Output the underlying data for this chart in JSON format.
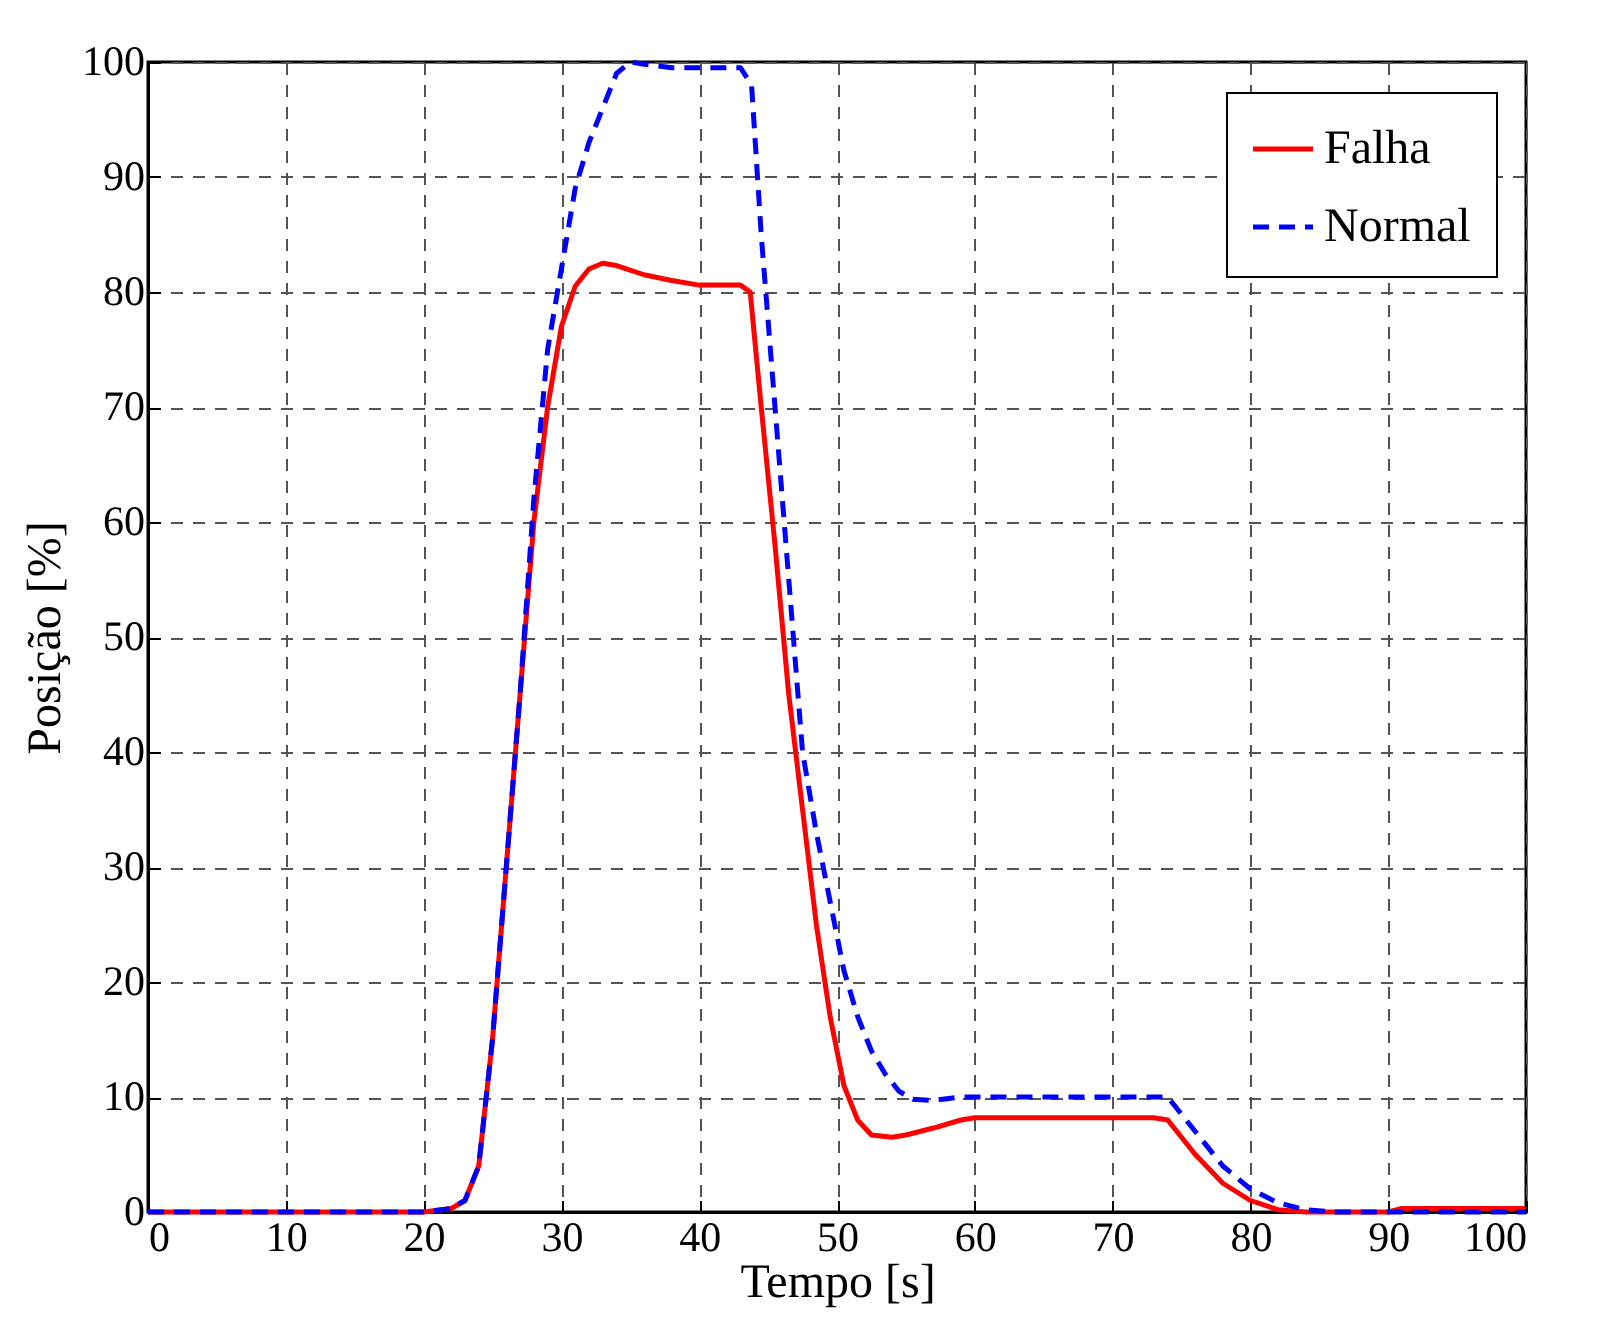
{
  "chart_data": {
    "type": "line",
    "xlabel": "Tempo [s]",
    "ylabel": "Posição [%]",
    "xlim": [
      0,
      100
    ],
    "ylim": [
      0,
      100
    ],
    "xticks": [
      0,
      10,
      20,
      30,
      40,
      50,
      60,
      70,
      80,
      90,
      100
    ],
    "yticks": [
      0,
      10,
      20,
      30,
      40,
      50,
      60,
      70,
      80,
      90,
      100
    ],
    "grid": true,
    "legend": "top right",
    "marker": "none",
    "series": [
      {
        "name": "Falha",
        "color": "#ff0000",
        "line_style": "solid",
        "x": [
          0,
          20,
          22,
          23,
          24,
          25,
          26,
          27,
          28,
          29,
          30,
          31,
          32,
          33,
          34,
          36,
          38,
          40,
          43,
          43.7,
          44.5,
          45.5,
          46.5,
          47.5,
          48.5,
          49.5,
          50.5,
          51.5,
          52.5,
          54,
          55,
          57,
          59,
          60,
          73,
          74,
          76,
          78,
          80,
          82,
          84,
          90,
          91,
          100
        ],
        "values": [
          0,
          0,
          0.3,
          1,
          4,
          15,
          30,
          45,
          60,
          70,
          77,
          80.5,
          82,
          82.5,
          82.3,
          81.5,
          81,
          80.6,
          80.6,
          80,
          70,
          58,
          45,
          35,
          25,
          17,
          11,
          8,
          6.7,
          6.5,
          6.7,
          7.3,
          8,
          8.2,
          8.2,
          8,
          5,
          2.5,
          1,
          0.2,
          0,
          0,
          0.3,
          0.3
        ]
      },
      {
        "name": "Normal",
        "color": "#0000ff",
        "line_style": "dashed",
        "x": [
          0,
          20,
          22,
          23,
          24,
          25,
          26,
          27,
          28,
          29,
          30,
          31,
          32,
          33,
          34,
          35,
          36,
          38,
          43,
          43.8,
          44.5,
          45.5,
          46.5,
          47.5,
          48.5,
          49.5,
          50.5,
          51.5,
          52.5,
          53.5,
          54.5,
          55.5,
          57,
          59,
          74,
          76,
          78,
          80,
          82,
          84,
          86,
          100
        ],
        "values": [
          0,
          0,
          0.3,
          1,
          4,
          15,
          30,
          45,
          62,
          75,
          82,
          89,
          93,
          96,
          99,
          100,
          99.8,
          99.5,
          99.5,
          98,
          85,
          70,
          55,
          40,
          33,
          27,
          21,
          17,
          14,
          12,
          10.5,
          9.8,
          9.7,
          10,
          10,
          7,
          4,
          2,
          0.8,
          0.2,
          0,
          0
        ]
      }
    ]
  }
}
